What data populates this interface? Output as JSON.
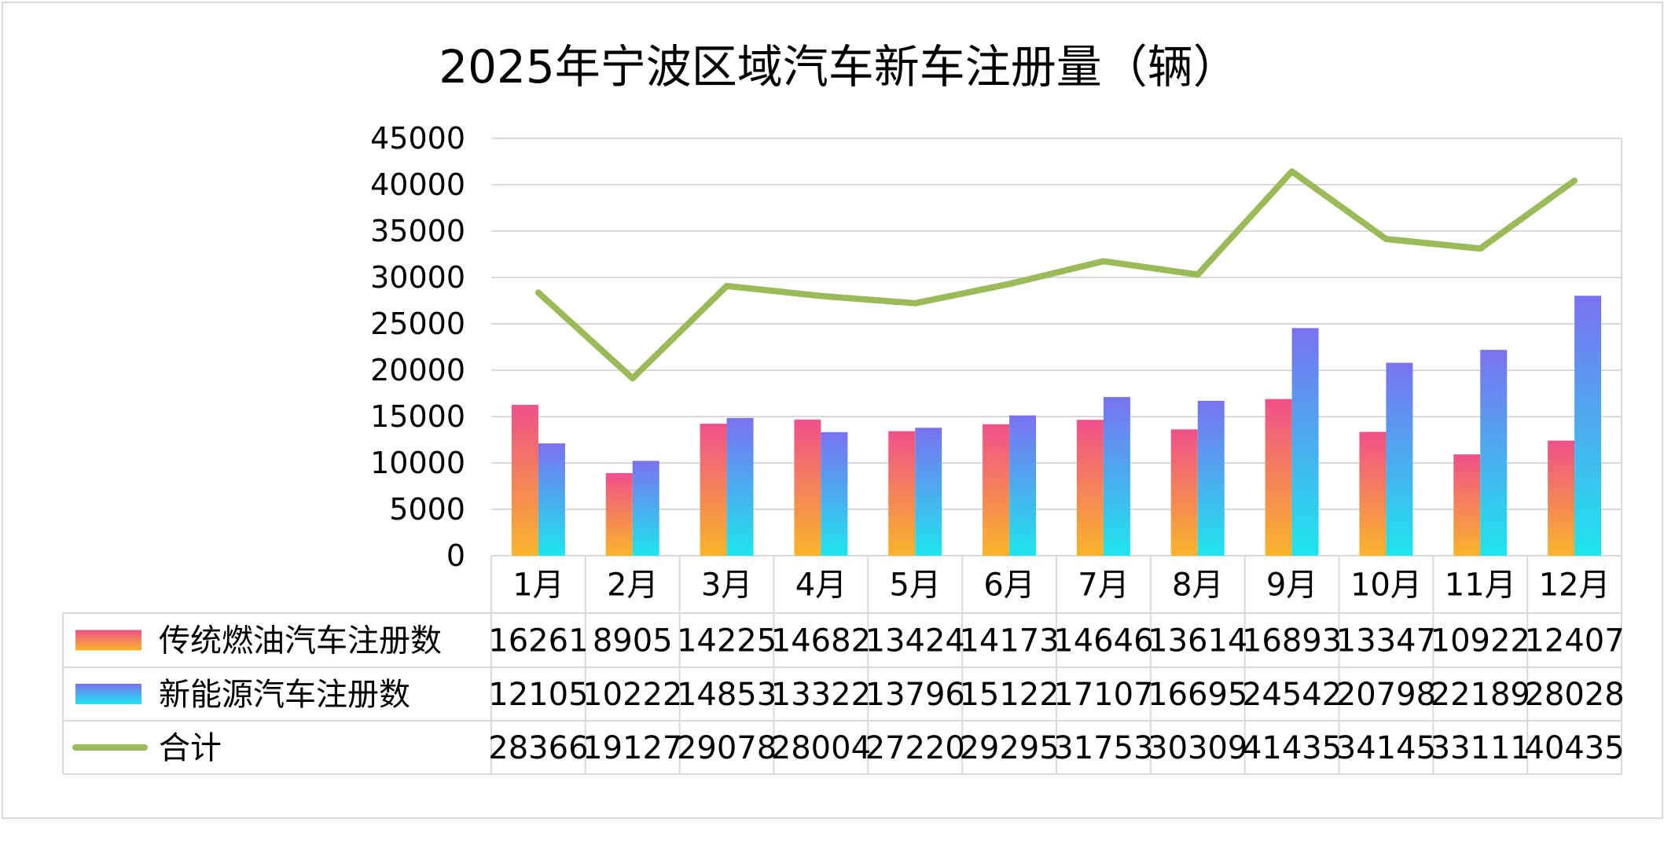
{
  "chart_data": {
    "type": "bar",
    "title": "2025年宁波区域汽车新车注册量（辆）",
    "categories": [
      "1月",
      "2月",
      "3月",
      "4月",
      "5月",
      "6月",
      "7月",
      "8月",
      "9月",
      "10月",
      "11月",
      "12月"
    ],
    "ylim": [
      0,
      45000
    ],
    "yticks": [
      "45000",
      "40000",
      "35000",
      "30000",
      "25000",
      "20000",
      "15000",
      "10000",
      "5000",
      "0"
    ],
    "grid": true,
    "legend": "data-table-bottom",
    "series": [
      {
        "name": "传统燃油汽车注册数",
        "type": "bar",
        "values": [
          16261,
          8905,
          14225,
          14682,
          13424,
          14173,
          14646,
          13614,
          16893,
          13347,
          10922,
          12407
        ],
        "color_top": "#f0508a",
        "color_bottom": "#f9b52a"
      },
      {
        "name": "新能源汽车注册数",
        "type": "bar",
        "values": [
          12105,
          10222,
          14853,
          13322,
          13796,
          15122,
          17107,
          16695,
          24542,
          20798,
          22189,
          28028
        ],
        "color_top": "#7a72f0",
        "color_bottom": "#1de6ee"
      },
      {
        "name": "合计",
        "type": "line",
        "values": [
          28366,
          19127,
          29078,
          28004,
          27220,
          29295,
          31753,
          30309,
          41435,
          34145,
          33111,
          40435
        ],
        "color": "#9bbb59"
      }
    ]
  }
}
